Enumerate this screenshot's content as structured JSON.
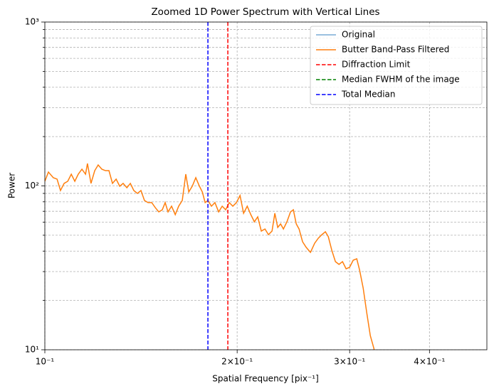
{
  "chart_data": {
    "type": "line",
    "title": "Zoomed 1D Power Spectrum with Vertical Lines",
    "xlabel": "Spatial Frequency [pix⁻¹]",
    "ylabel": "Power",
    "xscale": "log",
    "yscale": "log",
    "xlim": [
      0.1,
      0.492
    ],
    "ylim": [
      10,
      1000
    ],
    "xticks": [
      {
        "value": 0.1,
        "label": "10⁻¹"
      },
      {
        "value": 0.2,
        "label": "2×10⁻¹"
      },
      {
        "value": 0.3,
        "label": "3×10⁻¹"
      },
      {
        "value": 0.4,
        "label": "4×10⁻¹"
      }
    ],
    "yticks": [
      {
        "value": 10,
        "label": "10¹"
      },
      {
        "value": 100,
        "label": "10²"
      },
      {
        "value": 1000,
        "label": "10³"
      }
    ],
    "y_minor_ticks": [
      20,
      30,
      40,
      50,
      60,
      70,
      80,
      90,
      200,
      300,
      400,
      500,
      600,
      700,
      800,
      900
    ],
    "grid": true,
    "legend": "upper right",
    "x": [
      0.1,
      0.1013,
      0.1031,
      0.1045,
      0.1058,
      0.1072,
      0.1086,
      0.11,
      0.1114,
      0.1128,
      0.1143,
      0.1158,
      0.1166,
      0.1181,
      0.1197,
      0.1212,
      0.1228,
      0.1244,
      0.126,
      0.1276,
      0.1293,
      0.131,
      0.1326,
      0.1344,
      0.1361,
      0.1378,
      0.1396,
      0.1414,
      0.1432,
      0.1451,
      0.147,
      0.1489,
      0.1508,
      0.1527,
      0.1543,
      0.1559,
      0.1579,
      0.16,
      0.162,
      0.1641,
      0.1662,
      0.168,
      0.1701,
      0.1723,
      0.1746,
      0.1764,
      0.1782,
      0.18,
      0.1823,
      0.1846,
      0.1871,
      0.1895,
      0.1919,
      0.1944,
      0.1969,
      0.1995,
      0.2021,
      0.2047,
      0.2074,
      0.2101,
      0.2128,
      0.2154,
      0.2182,
      0.2211,
      0.2239,
      0.2268,
      0.2291,
      0.2315,
      0.2339,
      0.2363,
      0.2393,
      0.2424,
      0.2449,
      0.2475,
      0.25,
      0.2532,
      0.2565,
      0.2605,
      0.2645,
      0.268,
      0.2714,
      0.2749,
      0.2778,
      0.2813,
      0.285,
      0.2887,
      0.2924,
      0.2962,
      0.3,
      0.3039,
      0.3078,
      0.311,
      0.315,
      0.3191,
      0.3232,
      0.3274,
      0.3291
    ],
    "series": [
      {
        "name": "Original",
        "color": "#79acd6"
      },
      {
        "name": "Butter Band-Pass Filtered",
        "color": "#ff7f0e",
        "values": [
          106.7,
          121.5,
          112.2,
          110.0,
          93.7,
          103.6,
          106.7,
          117.9,
          106.7,
          117.9,
          126.5,
          117.9,
          137.0,
          103.6,
          123.9,
          134.3,
          126.5,
          123.9,
          123.9,
          103.6,
          110.0,
          99.5,
          103.6,
          97.5,
          103.6,
          93.7,
          90.0,
          93.7,
          81.5,
          79.1,
          79.1,
          73.7,
          69.4,
          71.5,
          79.1,
          69.4,
          75.2,
          66.8,
          75.2,
          81.5,
          117.9,
          91.9,
          99.5,
          112.2,
          99.5,
          91.9,
          79.1,
          81.5,
          75.2,
          79.1,
          69.4,
          75.2,
          71.5,
          79.1,
          75.2,
          79.1,
          87.4,
          68.1,
          75.2,
          66.8,
          60.4,
          64.7,
          53.0,
          54.6,
          50.4,
          53.0,
          68.1,
          55.8,
          58.6,
          54.6,
          60.4,
          69.4,
          71.5,
          58.6,
          54.6,
          45.6,
          42.2,
          39.3,
          44.7,
          48.0,
          50.4,
          52.5,
          49.0,
          40.5,
          34.5,
          33.2,
          34.5,
          31.2,
          31.9,
          35.2,
          35.9,
          30.6,
          23.8,
          16.8,
          12.2,
          10.2,
          9.2
        ]
      }
    ],
    "vlines": [
      {
        "name": "Diffraction Limit",
        "color": "#ff0000",
        "x": 0.1934
      },
      {
        "name": "Median FWHM of the image",
        "color": "#008000",
        "x": null
      },
      {
        "name": "Total Median",
        "color": "#0000ff",
        "x": 0.18
      }
    ]
  }
}
